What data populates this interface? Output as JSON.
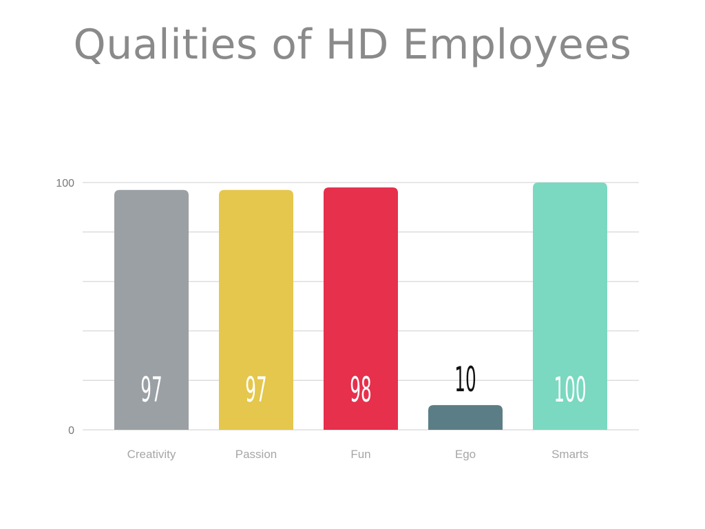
{
  "chart_data": {
    "type": "bar",
    "title": "Qualities of HD Employees",
    "categories": [
      "Creativity",
      "Passion",
      "Fun",
      "Ego",
      "Smarts"
    ],
    "values": [
      97,
      97,
      98,
      10,
      100
    ],
    "data_labels": [
      "97",
      "97",
      "98",
      "10",
      "100"
    ],
    "colors": [
      "#9aa0a4",
      "#e4c74c",
      "#e6304c",
      "#5b7e86",
      "#7ad9c0"
    ],
    "ylim": [
      0,
      100
    ],
    "y_tick_labels": [
      "100",
      "0"
    ],
    "grid": true,
    "legend": "none"
  }
}
